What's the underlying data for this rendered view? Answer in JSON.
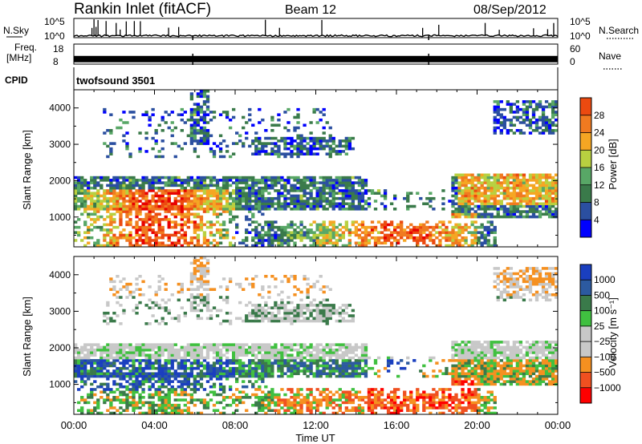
{
  "header": {
    "station": "Rankin Inlet (fitACF)",
    "beam": "Beam 12",
    "date": "08/Sep/2012"
  },
  "colors": {
    "power_scale": [
      "#0000ff",
      "#2b4fa0",
      "#3a7a4a",
      "#58a766",
      "#b8d040",
      "#f5a623",
      "#f07a20",
      "#ec4a10",
      "#e80000"
    ],
    "velocity_scale": [
      "#ff0000",
      "#f05020",
      "#f59020",
      "#c8c8c8",
      "#c8c8c8",
      "#40c040",
      "#3a7a4a",
      "#2c5aa0",
      "#1a3fbf"
    ],
    "velocity_ground_scatter": "#c8c8c8"
  },
  "chart_data": [
    {
      "type": "line",
      "id": "noise",
      "left_label": "N.Sky",
      "right_label": "N.Search",
      "left_ticks": [
        "10^5",
        "10^0"
      ],
      "right_ticks": [
        "10^5",
        "10^0"
      ],
      "x_range_hours": [
        0,
        24
      ],
      "baseline_log10": 0.5,
      "spike_times_hours": [
        0.9,
        1.0,
        1.1,
        1.2,
        1.6,
        2.1,
        2.3,
        2.6,
        3.0,
        3.3,
        4.7,
        5.2,
        9.5,
        10.2,
        12.3,
        17.3,
        18.1,
        20.4,
        21.1,
        22.8,
        23.5,
        23.8
      ]
    },
    {
      "type": "line",
      "id": "frequency",
      "left_label": "Freq.",
      "left_unit": "[MHz]",
      "right_label": "Nave",
      "left_ticks": [
        "18",
        "8"
      ],
      "right_ticks": [
        "60",
        "0"
      ],
      "x_range_hours": [
        0,
        24
      ],
      "value_mhz": 10.5
    },
    {
      "type": "table",
      "id": "cpid",
      "label": "CPID",
      "program": "twofsound 3501"
    },
    {
      "type": "heatmap",
      "id": "power",
      "ylabel": "Slant Range [km]",
      "ylim": [
        180,
        4500
      ],
      "y_ticks": [
        "1000",
        "2000",
        "3000",
        "4000"
      ],
      "x_range_hours": [
        0,
        24
      ],
      "colorbar_label": "Power [dB]",
      "colorbar_ticks": [
        "4",
        "8",
        "12",
        "16",
        "20",
        "24",
        "28"
      ],
      "colorbar_range": [
        0,
        30
      ]
    },
    {
      "type": "heatmap",
      "id": "velocity",
      "ylabel": "Slant Range [km]",
      "ylim": [
        180,
        4500
      ],
      "y_ticks": [
        "1000",
        "2000",
        "3000",
        "4000"
      ],
      "x_range_hours": [
        0,
        24
      ],
      "xlabel": "Time UT",
      "x_ticks": [
        "00:00",
        "04:00",
        "08:00",
        "12:00",
        "16:00",
        "20:00",
        "00:00"
      ],
      "colorbar_label": "Velocity [m s⁻¹]",
      "colorbar_ticks": [
        "1000",
        "500",
        "100",
        "25",
        "−25",
        "−100",
        "−500",
        "−1000"
      ]
    }
  ]
}
